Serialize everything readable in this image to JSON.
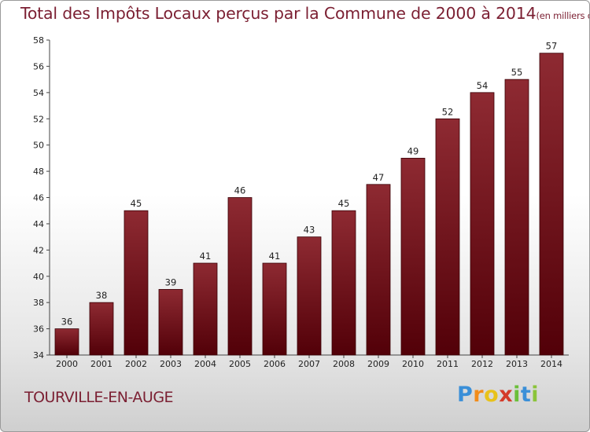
{
  "title_main": "Total des Impôts Locaux perçus par la Commune de 2000 à 2014",
  "title_unit": "(en milliers d'€)",
  "commune": "TOURVILLE-EN-AUGE",
  "logo": {
    "letters": [
      "P",
      "r",
      "o",
      "x",
      "i",
      "t",
      "i"
    ],
    "colors": [
      "#3a8fd8",
      "#f28c1a",
      "#e8c21a",
      "#d43b2a",
      "#6bbf3a",
      "#3a8fd8",
      "#8bc43a"
    ]
  },
  "chart_data": {
    "type": "bar",
    "title": "Total des Impôts Locaux perçus par la Commune de 2000 à 2014",
    "categories": [
      "2000",
      "2001",
      "2002",
      "2003",
      "2004",
      "2005",
      "2006",
      "2007",
      "2008",
      "2009",
      "2010",
      "2011",
      "2012",
      "2013",
      "2014"
    ],
    "values": [
      36,
      38,
      45,
      39,
      41,
      46,
      41,
      43,
      45,
      47,
      49,
      52,
      54,
      55,
      57
    ],
    "ylim": [
      34,
      58
    ],
    "yticks": [
      34,
      36,
      38,
      40,
      42,
      44,
      46,
      48,
      50,
      52,
      54,
      56,
      58
    ],
    "bar_color": "#7a1a22",
    "grid": false
  }
}
